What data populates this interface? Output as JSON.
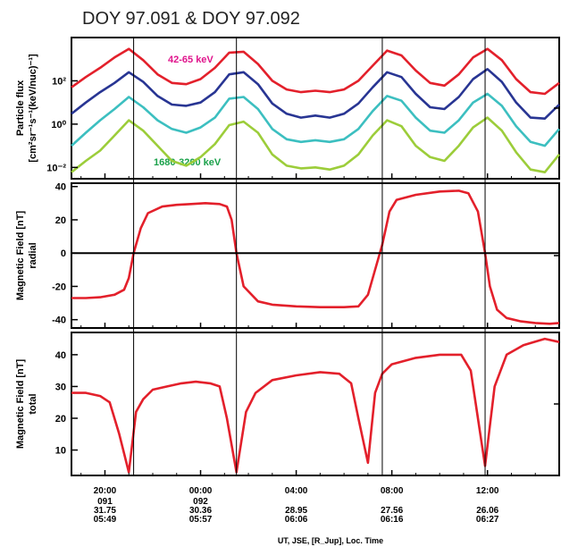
{
  "figure": {
    "title": "DOY 97.091 & DOY 97.092",
    "xlabel": "UT, JSE, [R_Jup], Loc. Time",
    "xticks": [
      {
        "time": "20:00",
        "line2": "091",
        "line3": "31.75",
        "line4": "05:49"
      },
      {
        "time": "00:00",
        "line2": "092",
        "line3": "30.36",
        "line4": "05:57"
      },
      {
        "time": "04:00",
        "line2": "",
        "line3": "28.95",
        "line4": "06:06"
      },
      {
        "time": "08:00",
        "line2": "",
        "line3": "27.56",
        "line4": "06:16"
      },
      {
        "time": "12:00",
        "line2": "",
        "line3": "26.06",
        "line4": "06:27"
      }
    ],
    "colors": {
      "red": "#e3202b",
      "navy": "#283593",
      "cyan": "#3cbfc0",
      "lime": "#9ccd3a",
      "label_low": "#e0148c",
      "label_high": "#1aa14a"
    }
  },
  "chart_data": [
    {
      "type": "line",
      "ylabel_line1": "Particle flux",
      "ylabel_line2": "[cm²sr⁻¹s⁻¹(keV/nuc)⁻¹]",
      "yscale": "log",
      "ylim": [
        0.003,
        10000
      ],
      "x_range_hours": [
        18.6,
        15.0
      ],
      "ytick_labels": [
        "10²",
        "10⁰",
        "10⁻²"
      ],
      "ytick_values": [
        100,
        1,
        0.01
      ],
      "annotations": [
        "42-65 keV",
        "1680-3200 keV"
      ],
      "x_hours": [
        18.6,
        19.2,
        19.8,
        20.4,
        21.0,
        21.6,
        22.2,
        22.8,
        23.4,
        24.0,
        24.6,
        25.2,
        25.8,
        26.4,
        27.0,
        27.6,
        28.2,
        28.8,
        29.4,
        30.0,
        30.6,
        31.2,
        31.8,
        32.4,
        33.0,
        33.6,
        34.2,
        34.8,
        35.4,
        36.0,
        36.6,
        37.2,
        37.8,
        38.4,
        39.0
      ],
      "series": [
        {
          "values": [
            50,
            150,
            400,
            1200,
            3000,
            900,
            200,
            80,
            70,
            120,
            400,
            2000,
            2200,
            600,
            100,
            40,
            30,
            35,
            30,
            40,
            100,
            500,
            2500,
            1500,
            300,
            80,
            60,
            200,
            1200,
            3000,
            900,
            120,
            30,
            25,
            80
          ]
        },
        {
          "values": [
            3,
            10,
            30,
            80,
            250,
            90,
            20,
            8,
            7,
            10,
            30,
            200,
            250,
            70,
            9,
            3,
            2,
            2.5,
            2,
            3,
            9,
            50,
            250,
            150,
            25,
            6,
            5,
            18,
            120,
            350,
            90,
            10,
            2,
            1.8,
            8
          ]
        },
        {
          "values": [
            0.1,
            0.4,
            1.5,
            5,
            18,
            6,
            1.5,
            0.6,
            0.4,
            0.7,
            2,
            15,
            18,
            5,
            0.6,
            0.2,
            0.15,
            0.18,
            0.15,
            0.2,
            0.6,
            4,
            20,
            12,
            2,
            0.5,
            0.4,
            1.5,
            10,
            25,
            7,
            0.8,
            0.15,
            0.1,
            0.6
          ]
        },
        {
          "values": [
            0.006,
            0.02,
            0.06,
            0.3,
            1.5,
            0.5,
            0.1,
            0.02,
            0.012,
            0.03,
            0.12,
            0.9,
            1.3,
            0.4,
            0.04,
            0.012,
            0.009,
            0.01,
            0.008,
            0.012,
            0.04,
            0.3,
            1.5,
            0.8,
            0.1,
            0.03,
            0.02,
            0.1,
            0.7,
            2,
            0.5,
            0.05,
            0.008,
            0.006,
            0.04
          ]
        }
      ]
    },
    {
      "type": "line",
      "ylabel_line1": "Magnetic Field [nT]",
      "ylabel_line2": "radial",
      "ylim": [
        -45,
        42
      ],
      "ytick_values": [
        40,
        20,
        0,
        -20,
        -40
      ],
      "ytick_labels": [
        "40",
        "20",
        "0",
        "-20",
        "-40"
      ],
      "x_hours": [
        18.6,
        19.2,
        19.8,
        20.4,
        20.8,
        21.0,
        21.2,
        21.5,
        21.8,
        22.4,
        23.0,
        23.6,
        24.2,
        24.8,
        25.1,
        25.3,
        25.5,
        25.8,
        26.4,
        27.0,
        28.0,
        29.0,
        30.0,
        30.6,
        31.0,
        31.3,
        31.6,
        31.9,
        32.2,
        33.0,
        34.0,
        34.8,
        35.2,
        35.6,
        35.9,
        36.1,
        36.4,
        36.8,
        37.4,
        38.0,
        38.6,
        39.0
      ],
      "values": [
        -27,
        -27,
        -26.5,
        -25,
        -22,
        -15,
        0,
        15,
        24,
        28,
        29,
        29.5,
        30,
        29.5,
        28,
        20,
        0,
        -20,
        -29,
        -31,
        -32,
        -32.5,
        -32.5,
        -32,
        -25,
        -10,
        5,
        25,
        32,
        35,
        37,
        37.5,
        36,
        25,
        0,
        -20,
        -34,
        -39,
        -41,
        -42,
        -42.5,
        -42
      ]
    },
    {
      "type": "line",
      "ylabel_line1": "Magnetic Field [nT]",
      "ylabel_line2": "total",
      "ylim": [
        2,
        47
      ],
      "ytick_values": [
        40,
        30,
        20,
        10
      ],
      "ytick_labels": [
        "40",
        "30",
        "20",
        "10"
      ],
      "x_hours": [
        18.6,
        19.2,
        19.8,
        20.2,
        20.6,
        21.0,
        21.3,
        21.6,
        22.0,
        22.6,
        23.2,
        23.8,
        24.4,
        24.8,
        25.1,
        25.5,
        25.9,
        26.3,
        27.0,
        28.0,
        29.0,
        29.8,
        30.3,
        30.6,
        31.0,
        31.3,
        31.6,
        32.0,
        33.0,
        34.0,
        34.9,
        35.3,
        35.6,
        35.9,
        36.3,
        36.8,
        37.5,
        38.4,
        39.0
      ],
      "values": [
        28,
        28,
        27,
        25,
        15,
        3,
        22,
        26,
        29,
        30,
        31,
        31.5,
        31,
        30,
        20,
        3,
        22,
        28,
        32,
        33.5,
        34.5,
        34,
        31,
        20,
        6,
        28,
        34,
        37,
        39,
        40,
        40,
        35,
        20,
        5,
        30,
        40,
        43,
        45,
        44
      ]
    }
  ]
}
